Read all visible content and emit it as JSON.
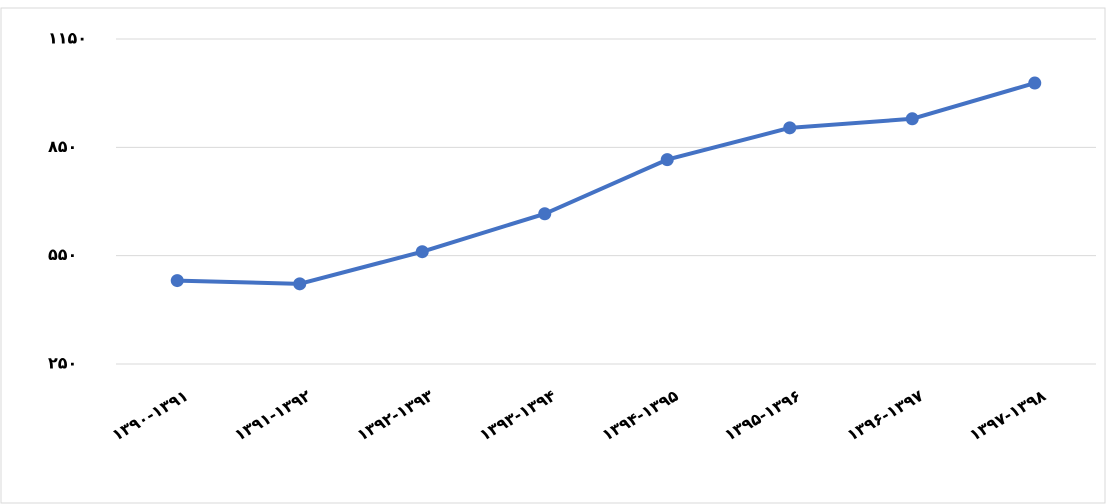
{
  "chart_data": {
    "type": "line",
    "categories": [
      "۱۳۹۰-۱۳۹۱",
      "۱۳۹۱-۱۳۹۲",
      "۱۳۹۲-۱۳۹۳",
      "۱۳۹۳-۱۳۹۴",
      "۱۳۹۴-۱۳۹۵",
      "۱۳۹۵-۱۳۹۶",
      "۱۳۹۶-۱۳۹۷",
      "۱۳۹۷-۱۳۹۸"
    ],
    "values": [
      481,
      472,
      561,
      666,
      816,
      904,
      929,
      1028
    ],
    "color": "#4472c4",
    "ylim": [
      250,
      1150
    ],
    "yticks": [
      {
        "value": 250,
        "label": "۲۵۰"
      },
      {
        "value": 550,
        "label": "۵۵۰"
      },
      {
        "value": 850,
        "label": "۸۵۰"
      },
      {
        "value": 1150,
        "label": "۱۱۵۰"
      }
    ],
    "grid": true
  }
}
